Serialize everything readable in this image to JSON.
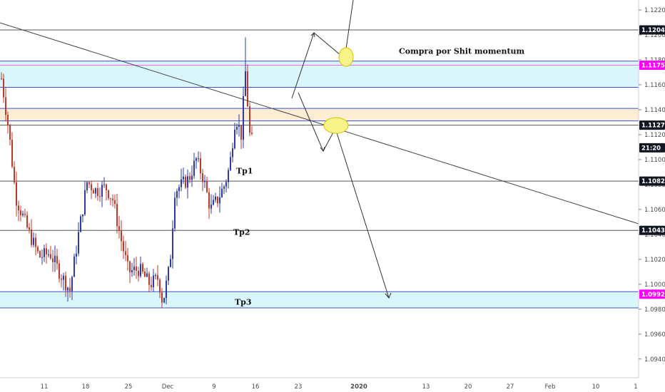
{
  "chart_data": {
    "type": "candlestick",
    "ylim": [
      1.0925,
      1.1228
    ],
    "y_ticks": [
      "1.12200",
      "1.12000",
      "1.11800",
      "1.11600",
      "1.11400",
      "1.11200",
      "1.11000",
      "1.10800",
      "1.10600",
      "1.10400",
      "1.10200",
      "1.10000",
      "1.09800",
      "1.09600",
      "1.09400"
    ],
    "x_ticks": [
      "11",
      "18",
      "25",
      "Dec",
      "9",
      "16",
      "23",
      "2020",
      "13",
      "20",
      "27",
      "Feb",
      "10",
      "1"
    ],
    "price_badges": [
      {
        "label": "1.12040",
        "value": 1.1204,
        "color": "#131722",
        "text_color": "#ffffff"
      },
      {
        "label": "1.11757",
        "value": 1.11757,
        "color": "#ff00ff",
        "text_color": "#ffffff"
      },
      {
        "label": "1.11276",
        "value": 1.11276,
        "color": "#131722",
        "text_color": "#ffffff"
      },
      {
        "label": "21:20",
        "value": 1.1118,
        "color": "#131722",
        "text_color": "#ffffff"
      },
      {
        "label": "1.10827",
        "value": 1.10827,
        "color": "#131722",
        "text_color": "#ffffff"
      },
      {
        "label": "1.10432",
        "value": 1.10432,
        "color": "#131722",
        "text_color": "#ffffff"
      },
      {
        "label": "1.09920",
        "value": 1.0992,
        "color": "#ff00ff",
        "text_color": "#ffffff"
      }
    ],
    "horizontal_lines": [
      {
        "value": 1.1204,
        "color": "#555555"
      },
      {
        "value": 1.11757,
        "color": "#ff66ff"
      },
      {
        "value": 1.11276,
        "color": "#555555"
      },
      {
        "value": 1.10827,
        "color": "#555555"
      },
      {
        "value": 1.10432,
        "color": "#555555"
      }
    ],
    "zones": [
      {
        "from": 1.1158,
        "to": 1.1179,
        "fill": "#d8f6fb",
        "border": "#3a4fd8"
      },
      {
        "from": 1.1131,
        "to": 1.1141,
        "fill": "#fdeed3",
        "border": "#3a4fd8"
      },
      {
        "from": 1.0981,
        "to": 1.0994,
        "fill": "#d8f6fb",
        "border": "#3a4fd8"
      }
    ],
    "annotations": [
      {
        "text": "Compra por Shit momentum",
        "value": 1.1187
      },
      {
        "text": "Tp1",
        "value": 1.1091
      },
      {
        "text": "Tp2",
        "value": 1.1042
      },
      {
        "text": "Tp3",
        "value": 1.0986
      }
    ],
    "colors": {
      "up": "#2b3aa6",
      "down": "#c0392b",
      "ellipse": "#f8f48a",
      "ellipse_border": "#d4c500"
    }
  }
}
